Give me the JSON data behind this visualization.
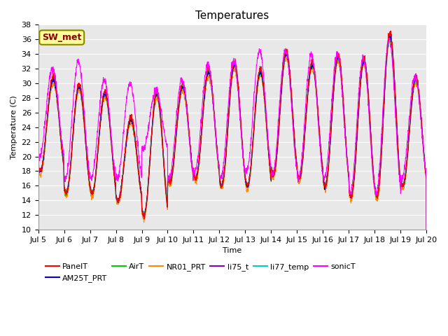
{
  "title": "Temperatures",
  "xlabel": "Time",
  "ylabel": "Temperature (C)",
  "ylim": [
    10,
    38
  ],
  "series_colors": {
    "PanelT": "#FF0000",
    "AM25T_PRT": "#0000CC",
    "AirT": "#00CC00",
    "NR01_PRT": "#FF8800",
    "li75_t": "#8800BB",
    "li77_temp": "#00CCCC",
    "sonicT": "#FF00FF"
  },
  "xtick_labels": [
    "Jul 5",
    "Jul 6",
    "Jul 7",
    "Jul 8",
    "Jul 9",
    "Jul 10",
    "Jul 11",
    "Jul 12",
    "Jul 13",
    "Jul 14",
    "Jul 15",
    "Jul 16",
    "Jul 17",
    "Jul 18",
    "Jul 19",
    "Jul 20"
  ],
  "ytick_values": [
    10,
    12,
    14,
    16,
    18,
    20,
    22,
    24,
    26,
    28,
    30,
    32,
    34,
    36,
    38
  ],
  "bg_color": "#E8E8E8",
  "grid_color": "#FFFFFF",
  "sw_met_label": "SW_met",
  "sw_met_bg": "#FFFF99",
  "sw_met_edge": "#888800",
  "title_fontsize": 11,
  "axis_fontsize": 8,
  "legend_fontsize": 8,
  "day_peaks": [
    31,
    30,
    29,
    25.5,
    29,
    30,
    32,
    33,
    32,
    34.5,
    33,
    34,
    33.5,
    37,
    31,
    31
  ],
  "day_mins": [
    18,
    15,
    15,
    14,
    12,
    16.5,
    17,
    16,
    16,
    17.5,
    17,
    16,
    14.5,
    14.5,
    16,
    16
  ],
  "sonic_peaks": [
    32,
    33,
    30.5,
    30,
    29,
    30.5,
    32.5,
    33,
    34.5,
    34.5,
    34,
    34,
    33.5,
    36,
    31,
    31
  ],
  "sonic_mins": [
    20,
    17,
    17,
    17,
    21,
    17,
    18,
    17,
    18,
    17.5,
    17,
    17,
    15,
    15,
    17,
    17
  ]
}
